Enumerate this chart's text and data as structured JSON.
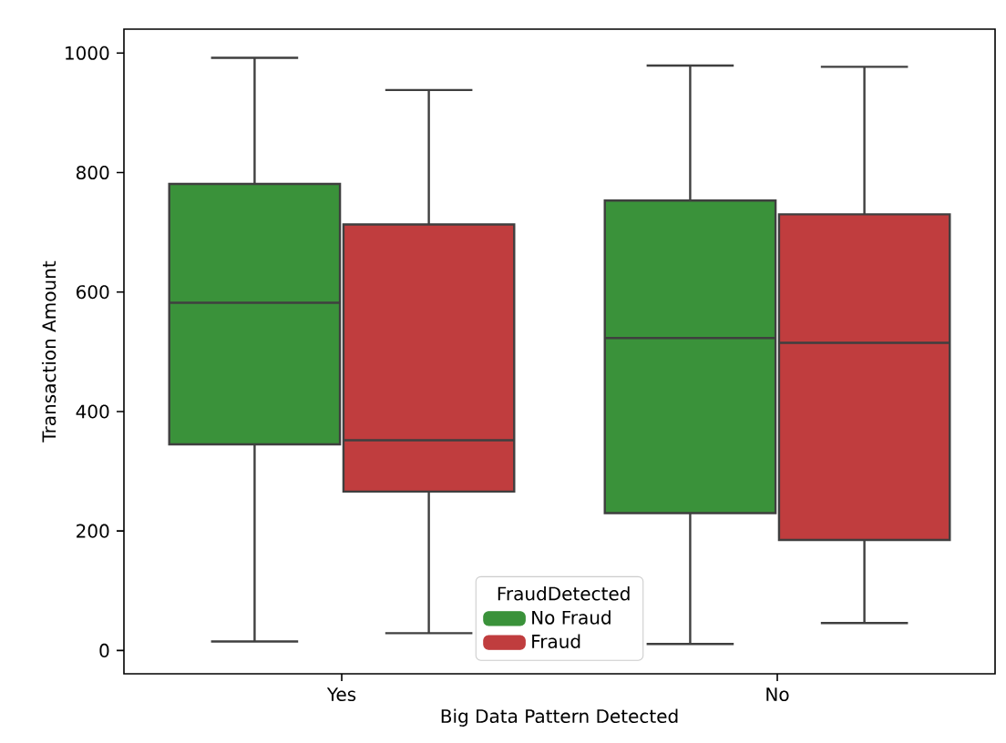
{
  "chart_data": {
    "type": "box",
    "xlabel": "Big Data Pattern Detected",
    "ylabel": "Transaction Amount",
    "legend_title": "FraudDetected",
    "legend": "bottom",
    "categories": [
      "Yes",
      "No"
    ],
    "ylim": [
      -39,
      1040
    ],
    "yticks": [
      0,
      200,
      400,
      600,
      800,
      1000
    ],
    "series": [
      {
        "name": "No Fraud",
        "color": "#3a923a",
        "boxes": [
          {
            "low": 15,
            "q1": 345,
            "median": 582,
            "q3": 781,
            "high": 992
          },
          {
            "low": 11,
            "q1": 230,
            "median": 523,
            "q3": 753,
            "high": 979
          }
        ]
      },
      {
        "name": "Fraud",
        "color": "#c03d3e",
        "boxes": [
          {
            "low": 29,
            "q1": 266,
            "median": 352,
            "q3": 713,
            "high": 938
          },
          {
            "low": 46,
            "q1": 185,
            "median": 515,
            "q3": 730,
            "high": 977
          }
        ]
      }
    ]
  }
}
